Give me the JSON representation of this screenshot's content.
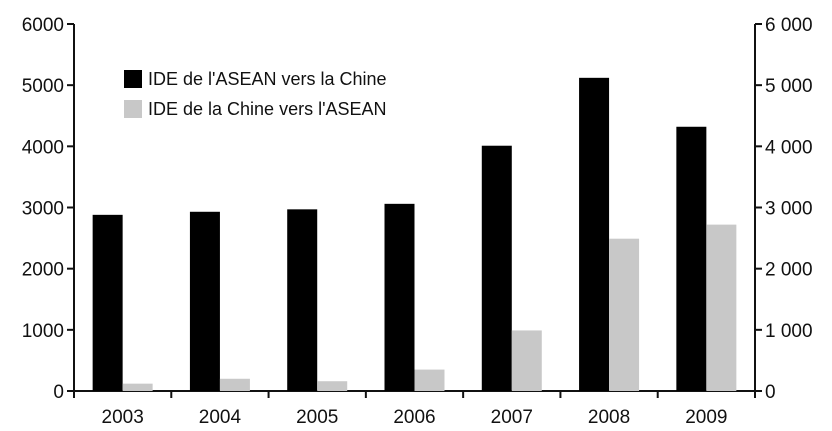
{
  "chart_data": {
    "type": "bar",
    "categories": [
      "2003",
      "2004",
      "2005",
      "2006",
      "2007",
      "2008",
      "2009"
    ],
    "series": [
      {
        "name": "IDE de l'ASEAN vers la Chine",
        "color": "#000000",
        "values": [
          2880,
          2930,
          2970,
          3060,
          4010,
          5120,
          4320
        ]
      },
      {
        "name": "IDE de la Chine vers l'ASEAN",
        "color": "#c8c8c8",
        "values": [
          120,
          200,
          160,
          350,
          990,
          2490,
          2720
        ]
      }
    ],
    "ylim": [
      0,
      6000
    ],
    "y_ticks": [
      0,
      1000,
      2000,
      3000,
      4000,
      5000,
      6000
    ],
    "y_tick_labels_left": [
      "0",
      "1000",
      "2000",
      "3000",
      "4000",
      "5000",
      "6000"
    ],
    "y_tick_labels_right": [
      "0",
      "1 000",
      "2 000",
      "3 000",
      "4 000",
      "5 000",
      "6 000"
    ],
    "legend_position": "top-left",
    "grid": false,
    "title": "",
    "xlabel": "",
    "ylabel": ""
  }
}
